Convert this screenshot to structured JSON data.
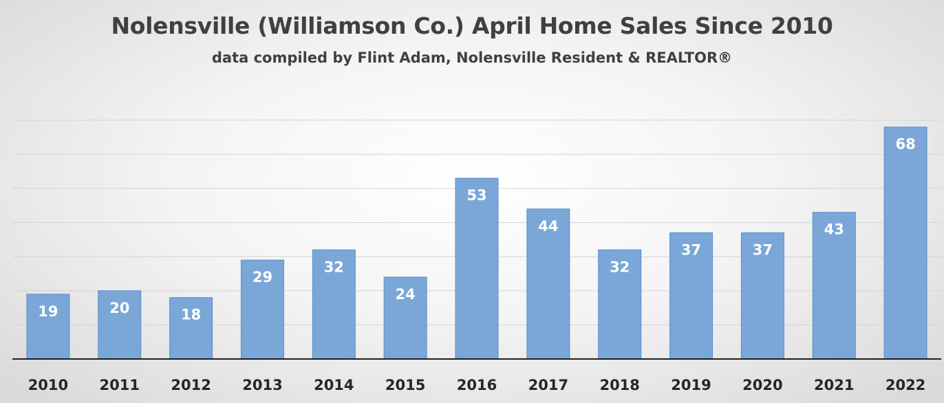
{
  "chart_data": {
    "type": "bar",
    "title": "Nolensville (Williamson Co.) April Home Sales Since 2010",
    "subtitle": "data compiled by Flint Adam, Nolensville Resident & REALTOR®",
    "categories": [
      "2010",
      "2011",
      "2012",
      "2013",
      "2014",
      "2015",
      "2016",
      "2017",
      "2018",
      "2019",
      "2020",
      "2021",
      "2022"
    ],
    "values": [
      19,
      20,
      18,
      29,
      32,
      24,
      53,
      44,
      32,
      37,
      37,
      43,
      68
    ],
    "ylim": [
      0,
      70
    ],
    "grid": true,
    "data_labels": true,
    "legend": "none",
    "bar_color": "#7aa7d7"
  }
}
